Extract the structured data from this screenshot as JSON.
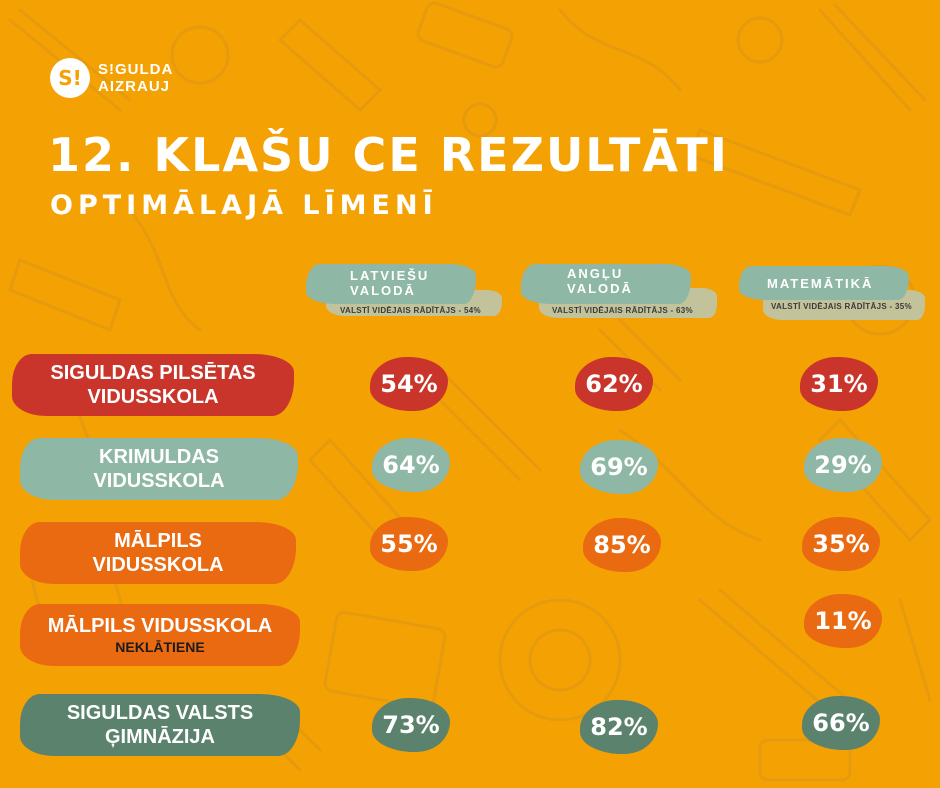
{
  "logo": {
    "mark": "S!",
    "line1": "S!GULDA",
    "line2": "AIZRAUJ"
  },
  "title": "12. KLAŠU CE REZULTĀTI",
  "subtitle": "OPTIMĀLAJĀ LĪMENĪ",
  "columns": [
    {
      "title_line1": "LATVIEŠU",
      "title_line2": "VALODĀ",
      "note": "VALSTĪ VIDĒJAIS RĀDĪTĀJS - 54%"
    },
    {
      "title_line1": "ANGĻU",
      "title_line2": "VALODĀ",
      "note": "VALSTĪ VIDĒJAIS RĀDĪTĀJS - 63%"
    },
    {
      "title_line1": "MATEMĀTIKĀ",
      "title_line2": "",
      "note": "VALSTĪ VIDĒJAIS RĀDĪTĀJS - 35%"
    }
  ],
  "rows": [
    {
      "line1": "SIGULDAS PILSĒTAS",
      "line2": "VIDUSSKOLA",
      "sub": "",
      "color": "#c9352b",
      "values": [
        "54%",
        "62%",
        "31%"
      ]
    },
    {
      "line1": "KRIMULDAS",
      "line2": "VIDUSSKOLA",
      "sub": "",
      "color": "#8fb7a6",
      "values": [
        "64%",
        "69%",
        "29%"
      ]
    },
    {
      "line1": "MĀLPILS",
      "line2": "VIDUSSKOLA",
      "sub": "",
      "color": "#ea6a12",
      "values": [
        "55%",
        "85%",
        "35%"
      ]
    },
    {
      "line1": "MĀLPILS VIDUSSKOLA",
      "line2": "",
      "sub": "NEKLĀTIENE",
      "color": "#ea6a12",
      "values": [
        "",
        "",
        "11%"
      ]
    },
    {
      "line1": "SIGULDAS VALSTS",
      "line2": "ĢIMNĀZIJA",
      "sub": "",
      "color": "#5b826d",
      "values": [
        "73%",
        "82%",
        "66%"
      ]
    }
  ]
}
